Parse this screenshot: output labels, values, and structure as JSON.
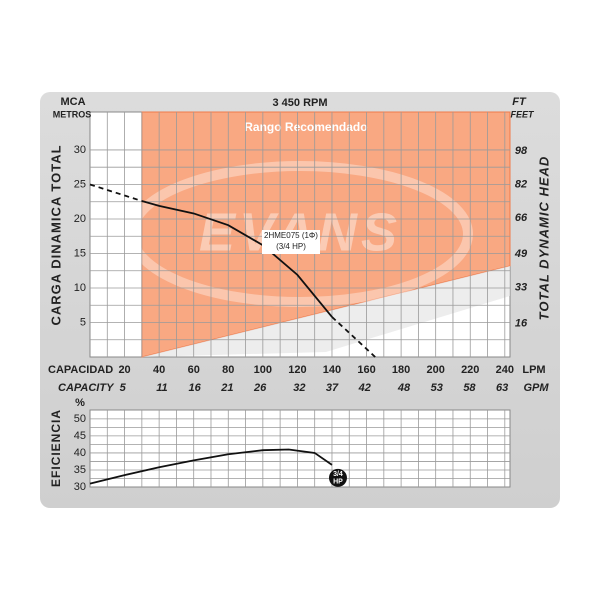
{
  "chart_data": [
    {
      "type": "line",
      "title": "3 450 RPM",
      "y_unit": "MCA",
      "y_unit_sub": "METROS",
      "y2_unit": "FT",
      "y2_unit_sub": "FEET",
      "ylabel": "CARGA DINAMICA TOTAL",
      "y2label": "TOTAL DYNAMIC HEAD",
      "x_name": "CAPACIDAD",
      "x_unit": "LPM",
      "x2_name": "CAPACITY",
      "x2_unit": "GPM",
      "xlim": [
        0,
        243
      ],
      "xticks": [
        20,
        40,
        60,
        80,
        100,
        120,
        140,
        160,
        180,
        200,
        220,
        240
      ],
      "x2lim": [
        0,
        64.2
      ],
      "x2ticks": [
        5,
        11,
        16,
        21,
        26,
        32,
        37,
        42,
        48,
        53,
        58,
        63
      ],
      "ylim": [
        0,
        35.5
      ],
      "yticks": [
        5,
        10,
        15,
        20,
        25,
        30
      ],
      "y2lim": [
        0,
        116.5
      ],
      "y2ticks": [
        16,
        33,
        49,
        66,
        82,
        98
      ],
      "grid": true,
      "x": [
        0,
        10,
        20,
        30,
        40,
        60,
        80,
        100,
        120,
        140,
        150,
        165
      ],
      "series": [
        {
          "color": "#111111",
          "dashed": false,
          "values": [
            null,
            null,
            null,
            22.6,
            21.9,
            20.8,
            19.1,
            16.2,
            11.9,
            5.8,
            null,
            null
          ]
        },
        {
          "color": "#111111",
          "dashed": true,
          "values": [
            25,
            24.2,
            23.4,
            22.6,
            null,
            null,
            null,
            null,
            null,
            5.8,
            3.5,
            0
          ]
        }
      ],
      "annotation": [
        "2HME075 (1Φ)",
        "(3/4 HP)"
      ],
      "recommended_range": {
        "label": "Rango Recomendado",
        "x": [
          30,
          243
        ],
        "lower": [
          0,
          13.2
        ],
        "color": "#f9a882"
      },
      "watermark": "EVANS"
    },
    {
      "type": "line",
      "ylabel": "EFICIENCIA",
      "y_unit": "%",
      "xlim": [
        0,
        243
      ],
      "ylim": [
        30,
        52.6
      ],
      "yticks": [
        30,
        35,
        40,
        45,
        50
      ],
      "grid": true,
      "x": [
        0,
        20,
        40,
        60,
        80,
        100,
        115,
        130,
        140
      ],
      "series": [
        {
          "color": "#111111",
          "dashed": false,
          "values": [
            31,
            33.5,
            35.8,
            37.8,
            39.6,
            40.8,
            41,
            40,
            36.5
          ]
        }
      ],
      "end_label": [
        "3/4",
        "HP"
      ]
    }
  ]
}
